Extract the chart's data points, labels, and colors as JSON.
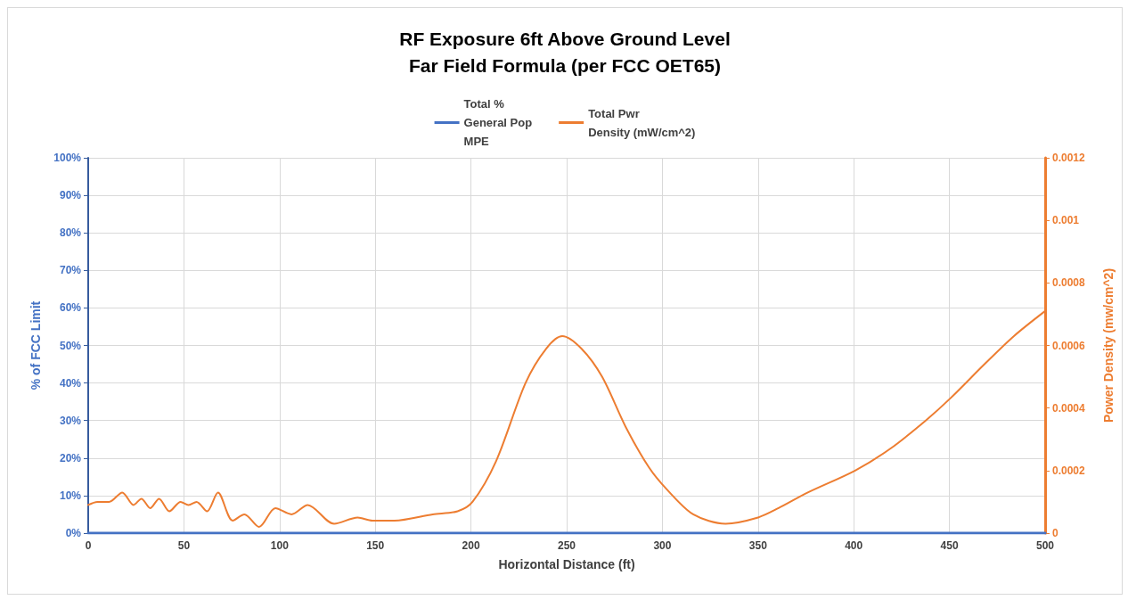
{
  "chart_data": {
    "type": "line",
    "title": "RF Exposure 6ft Above Ground Level\nFar Field Formula (per FCC OET65)",
    "xlabel": "Horizontal Distance (ft)",
    "ylabel": "% of FCC Limit",
    "y2label": "Power Density (mw/cm^2)",
    "xlim": [
      0,
      500
    ],
    "xticks": [
      0,
      50,
      100,
      150,
      200,
      250,
      300,
      350,
      400,
      450,
      500
    ],
    "ylim": [
      0,
      100
    ],
    "yticks": [
      {
        "value": 0,
        "label": "0%"
      },
      {
        "value": 10,
        "label": "10%"
      },
      {
        "value": 20,
        "label": "20%"
      },
      {
        "value": 30,
        "label": "30%"
      },
      {
        "value": 40,
        "label": "40%"
      },
      {
        "value": 50,
        "label": "50%"
      },
      {
        "value": 60,
        "label": "60%"
      },
      {
        "value": 70,
        "label": "70%"
      },
      {
        "value": 80,
        "label": "80%"
      },
      {
        "value": 90,
        "label": "90%"
      },
      {
        "value": 100,
        "label": "100%"
      }
    ],
    "y2lim": [
      0,
      0.0012
    ],
    "y2ticks": [
      0,
      0.0002,
      0.0004,
      0.0006,
      0.0008,
      0.001,
      0.0012
    ],
    "grid": true,
    "legend": "top",
    "marker": "none",
    "line_style": "solid",
    "series": [
      {
        "name": "Total % General Pop MPE",
        "color": "#4472c4",
        "x": [
          0,
          100,
          200,
          300,
          400,
          500
        ],
        "values": [
          0,
          0,
          0,
          0,
          0,
          0
        ]
      },
      {
        "name": "Total Pwr Density (mW/cm^2)",
        "color": "#ed7d31",
        "axis": "y2",
        "x": [
          0,
          4.8,
          10.9,
          17.8,
          23.7,
          27.8,
          32.4,
          37,
          42.4,
          48.3,
          52.4,
          56.6,
          62.1,
          67.8,
          75.5,
          81.6,
          89.3,
          97.8,
          106.2,
          114.7,
          128.5,
          140.8,
          148.5,
          160,
          180,
          193,
          200.8,
          213.1,
          228.5,
          239.3,
          247.7,
          257.7,
          268.5,
          280.8,
          293,
          302.3,
          316.1,
          333,
          350,
          360.7,
          376,
          400.7,
          419.1,
          437.6,
          450.3,
          468.3,
          483.7,
          500
        ],
        "values": [
          9e-05,
          0.0001,
          0.0001,
          0.00013,
          9e-05,
          0.00011,
          8e-05,
          0.00011,
          7e-05,
          0.0001,
          9e-05,
          0.0001,
          7e-05,
          0.00013,
          4e-05,
          6e-05,
          2e-05,
          8e-05,
          6e-05,
          9e-05,
          3e-05,
          5e-05,
          4e-05,
          4e-05,
          6e-05,
          7e-05,
          0.0001,
          0.00023,
          0.00048,
          0.00059,
          0.00063,
          0.00059,
          0.0005,
          0.00034,
          0.00021,
          0.00014,
          6e-05,
          3e-05,
          5e-05,
          8e-05,
          0.00013,
          0.0002,
          0.00027,
          0.00036,
          0.00043,
          0.00054,
          0.00063,
          0.00071
        ]
      }
    ]
  }
}
